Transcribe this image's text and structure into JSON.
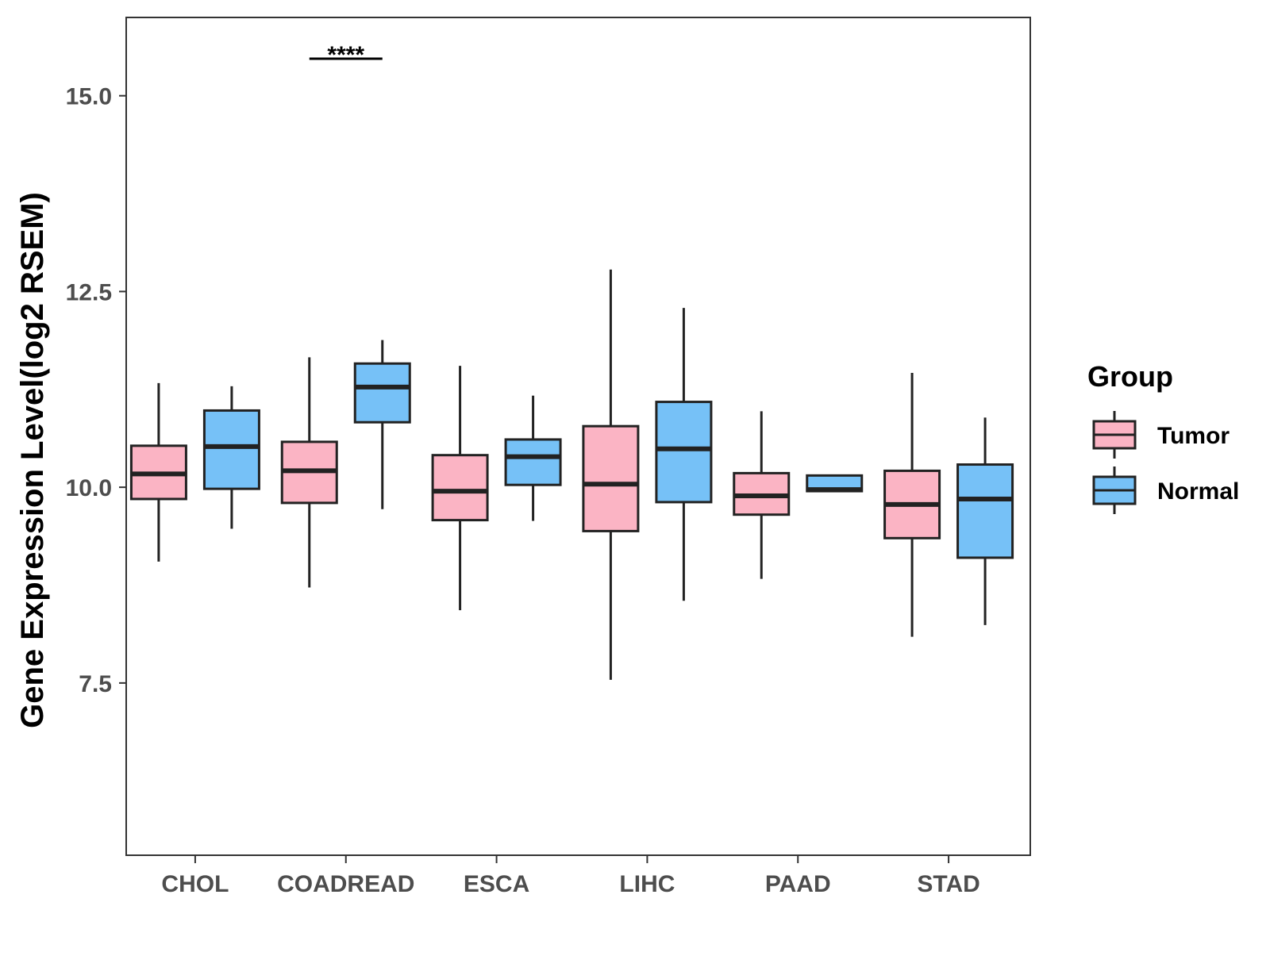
{
  "chart_data": {
    "type": "boxplot",
    "title": "",
    "xlabel": "",
    "ylabel": "Gene Expression Level(log2 RSEM)",
    "ylim": [
      5.3,
      16
    ],
    "yticks": [
      "7.5",
      "10.0",
      "12.5",
      "15.0"
    ],
    "grid": false,
    "legend": {
      "title": "Group",
      "position": "right",
      "entries": [
        {
          "name": "Tumor",
          "color": "#FBB4C4"
        },
        {
          "name": "Normal",
          "color": "#76C1F7"
        }
      ]
    },
    "categories": [
      "CHOL",
      "COADREAD",
      "ESCA",
      "LIHC",
      "PAAD",
      "STAD"
    ],
    "series": [
      {
        "name": "Tumor",
        "color": "#FBB4C4",
        "boxes": [
          {
            "min": 9.05,
            "q1": 9.85,
            "median": 10.17,
            "q3": 10.53,
            "max": 11.33
          },
          {
            "min": 8.72,
            "q1": 9.8,
            "median": 10.21,
            "q3": 10.58,
            "max": 11.66
          },
          {
            "min": 8.43,
            "q1": 9.58,
            "median": 9.95,
            "q3": 10.41,
            "max": 11.55
          },
          {
            "min": 7.54,
            "q1": 9.44,
            "median": 10.04,
            "q3": 10.78,
            "max": 12.78
          },
          {
            "min": 8.83,
            "q1": 9.65,
            "median": 9.89,
            "q3": 10.18,
            "max": 10.97
          },
          {
            "min": 8.09,
            "q1": 9.35,
            "median": 9.78,
            "q3": 10.21,
            "max": 11.46
          }
        ]
      },
      {
        "name": "Normal",
        "color": "#76C1F7",
        "boxes": [
          {
            "min": 9.47,
            "q1": 9.98,
            "median": 10.52,
            "q3": 10.98,
            "max": 11.29
          },
          {
            "min": 9.72,
            "q1": 10.83,
            "median": 11.28,
            "q3": 11.58,
            "max": 11.88
          },
          {
            "min": 9.57,
            "q1": 10.03,
            "median": 10.39,
            "q3": 10.61,
            "max": 11.17
          },
          {
            "min": 8.55,
            "q1": 9.81,
            "median": 10.49,
            "q3": 11.09,
            "max": 12.29
          },
          {
            "min": 9.94,
            "q1": 9.95,
            "median": 9.97,
            "q3": 10.15,
            "max": 10.15
          },
          {
            "min": 8.24,
            "q1": 9.1,
            "median": 9.85,
            "q3": 10.29,
            "max": 10.89
          }
        ]
      }
    ],
    "annotations": [
      {
        "category": "COADREAD",
        "text": "****"
      }
    ]
  }
}
